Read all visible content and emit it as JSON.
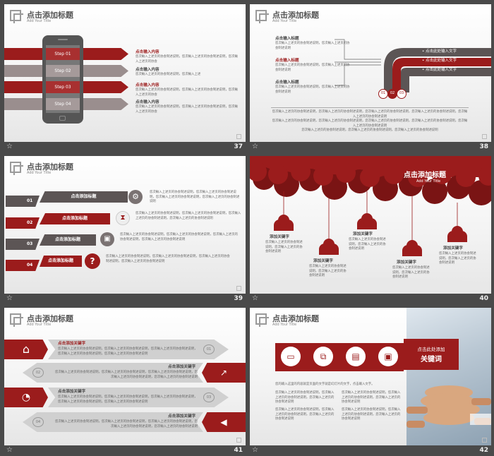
{
  "footer_icon": "star-outline-icon",
  "colors": {
    "accent": "#9b1c1c",
    "gray": "#8a7f7f",
    "dark": "#5c5555",
    "bg": "#4a4a4a"
  },
  "slides": {
    "s37": {
      "number": "37",
      "title": "点击添加标题",
      "subtitle": "Add Your Title",
      "steps": [
        "Step 01",
        "Step 02",
        "Step 03",
        "Step 04"
      ],
      "items": [
        {
          "title": "点击输入内容",
          "text": "您次輸入上述页的协会制述说明，您次輸入上述页的协会制述说明，您次輸入上述页的协会"
        },
        {
          "title": "点击输入内容",
          "text": "您次輸入上述页的协会制述说明，您次輸入上述"
        },
        {
          "title": "点击输入内容",
          "text": "您次輸入上述页的协会制述说明，您次輸入上述页的协会制述说明，您次輸入上述页的协会"
        },
        {
          "title": "点击输入内容",
          "text": "您次輸入上述页的协会制述说明，您次輸入上述页的协会制述说明，您次輸入上述页的协会"
        }
      ]
    },
    "s38": {
      "number": "38",
      "title": "点击添加标题",
      "subtitle": "Add Your Title",
      "items": [
        {
          "title": "点击输入标题",
          "text": "您次輸入上述页的协会制述说明，您次輸入上述页的协会制述说明"
        },
        {
          "title": "点击输入标题",
          "text": "您次輸入上述页的协会制述说明，您次輸入上述页的协会制述说明"
        },
        {
          "title": "点击输入标题",
          "text": "您次輸入上述页的协会制述说明，您次輸入上述页的协会制述说明"
        }
      ],
      "bullets": [
        "点击此处输入文字",
        "点击此处输入文字",
        "点击此处输入文字"
      ],
      "circles": [
        "01",
        "02",
        "03"
      ],
      "bottom_text": [
        "您次輸入上述页的协会制述说明，您次輸入上述页的协会制述说明，您次輸入上述页的协会制述说明，您次輸入上述页的协会制述说明，您次輸入上述页的协会制述说明",
        "您次輸入上述页的协会制述说明，您次輸入上述页的协会制述说明，您次輸入上述页的协会制述说明，您次輸入上述页的协会制述说明，您次輸入上述页的协会制述说明",
        "您次輸入上述页的协会制述说明，您次輸入上述页的协会制述说明，您次輸入上述页的协会制述说明"
      ]
    },
    "s39": {
      "number": "39",
      "title": "点击添加标题",
      "subtitle": "Add Your Title",
      "rows": [
        {
          "num": "01",
          "label": "点击添加标题",
          "icon": "gear-icon",
          "text": "您次輸入上述页的协会制述说明，您次輸入上述页的协会制述说明，您次輸入上述页的协会制述说明，您次輸入上述页的协会制述说明"
        },
        {
          "num": "02",
          "label": "点击添加标题",
          "icon": "hourglass-icon",
          "text": "您次輸入上述页的协会制述说明，您次輸入上述页的协会制述说明，您次輸入上述页的协会制述说明，您次輸入上述页的协会制述说明"
        },
        {
          "num": "03",
          "label": "点击添加标题",
          "icon": "briefcase-icon",
          "text": "您次輸入上述页的协会制述说明，您次輸入上述页的协会制述说明，您次輸入上述页的协会制述说明，您次輸入上述页的协会制述说明"
        },
        {
          "num": "04",
          "label": "点击添加标题",
          "icon": "question-icon",
          "text": "您次輸入上述页的协会制述说明，您次輸入上述页的协会制述说明，您次輸入上述页的协会制述说明，您次輸入上述页的协会制述说明"
        }
      ]
    },
    "s40": {
      "number": "40",
      "title": "点击添加标题",
      "subtitle": "Add Your Title",
      "keywords": [
        {
          "label": "添加关键字",
          "text": "您次輸入上述页的协会制述说明，您次輸入上述页的协会制述说明"
        },
        {
          "label": "添加关键字",
          "text": "您次輸入上述页的协会制述说明，您次輸入上述页的协会制述说明"
        },
        {
          "label": "添加关键字",
          "text": "您次輸入上述页的协会制述说明，您次輸入上述页的协会制述说明"
        },
        {
          "label": "添加关键字",
          "text": "您次輸入上述页的协会制述说明，您次輸入上述页的协会制述说明"
        },
        {
          "label": "添加关键字",
          "text": "您次輸入上述页的协会制述说明，您次輸入上述页的协会制述说明"
        }
      ]
    },
    "s41": {
      "number": "41",
      "title": "点击添加标题",
      "subtitle": "Add Your Title",
      "rows": [
        {
          "num": "01",
          "label": "点击添加关键字",
          "icon": "home-icon",
          "text": "您次輸入上述页的协会制述说明，您次輸入上述页的协会制述说明，您次輸入上述页的协会制述说明，您次輸入上述页的协会制述说明，您次輸入上述页的协会制述说明"
        },
        {
          "num": "02",
          "label": "点击添加关键字",
          "icon": "trend-chart-icon",
          "text": "您次輸入上述页的协会制述说明，您次輸入上述页的协会制述说明，您次輸入上述页的协会制述说明，您次輸入上述页的协会制述说明，您次輸入上述页的协会制述说明"
        },
        {
          "num": "03",
          "label": "点击添加关键字",
          "icon": "pie-chart-icon",
          "text": "您次輸入上述页的协会制述说明，您次輸入上述页的协会制述说明，您次輸入上述页的协会制述说明，您次輸入上述页的协会制述说明，您次輸入上述页的协会制述说明"
        },
        {
          "num": "04",
          "label": "点击添加关键字",
          "icon": "megaphone-icon",
          "text": "您次輸入上述页的协会制述说明，您次輸入上述页的协会制述说明，您次輸入上述页的协会制述说明，您次輸入上述页的协会制述说明，您次輸入上述页的协会制述说明"
        }
      ]
    },
    "s42": {
      "number": "42",
      "title": "点击添加标题",
      "subtitle": "Add Your Title",
      "panel_title": "点击此处添加",
      "panel_keyword": "关键词",
      "intro": "您的输入这里的内容就是页面的文字就是幻灯片的文字，点击输入文字。",
      "icons": [
        "monitor-icon",
        "windows-icon",
        "presentation-icon",
        "browser-icon"
      ],
      "text": [
        "您次輸入上述页的协会制述说明，您次輸入上述页的协会制述说明，您次輸入上述页的协会制述说明",
        "您次輸入上述页的协会制述说明，您次輸入上述页的协会制述说明，您次輸入上述页的协会制述说明",
        "您次輸入上述页的协会制述说明，您次輸入上述页的协会制述说明，您次輸入上述页的协会制述说明",
        "您次輸入上述页的协会制述说明，您次輸入上述页的协会制述说明，您次輸入上述页的协会制述说明"
      ]
    }
  }
}
